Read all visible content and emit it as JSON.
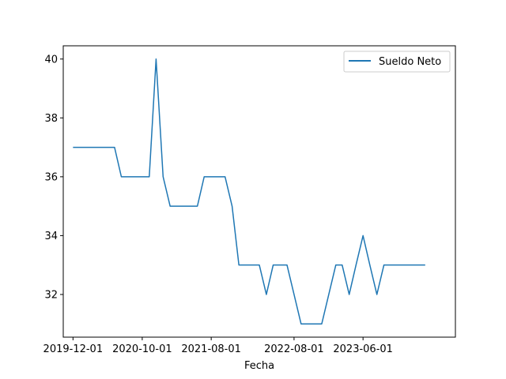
{
  "chart_data": {
    "type": "line",
    "xlabel": "Fecha",
    "ylabel": "",
    "title": "",
    "xlim": [
      "2019-10-19",
      "2024-07-12"
    ],
    "ylim": [
      30.55,
      40.45
    ],
    "x_ticks": [
      "2019-12-01",
      "2020-10-01",
      "2021-08-01",
      "2022-08-01",
      "2023-06-01"
    ],
    "y_ticks": [
      32,
      34,
      36,
      38,
      40
    ],
    "y_tick_labels": [
      "32",
      "34",
      "36",
      "38",
      "40"
    ],
    "legend": {
      "position": "upper-right",
      "entries": [
        "Sueldo Neto"
      ]
    },
    "grid": false,
    "series": [
      {
        "name": "Sueldo Neto",
        "color": "#1f77b4",
        "x": [
          "2019-12-01",
          "2020-01-01",
          "2020-02-01",
          "2020-03-01",
          "2020-04-01",
          "2020-05-01",
          "2020-06-01",
          "2020-07-01",
          "2020-08-01",
          "2020-09-01",
          "2020-10-01",
          "2020-11-01",
          "2020-12-01",
          "2021-01-01",
          "2021-02-01",
          "2021-03-01",
          "2021-04-01",
          "2021-05-01",
          "2021-06-01",
          "2021-07-01",
          "2021-08-01",
          "2021-09-01",
          "2021-10-01",
          "2021-11-01",
          "2021-12-01",
          "2022-01-01",
          "2022-02-01",
          "2022-03-01",
          "2022-04-01",
          "2022-05-01",
          "2022-06-01",
          "2022-07-01",
          "2022-08-01",
          "2022-09-01",
          "2022-10-01",
          "2022-11-01",
          "2022-12-01",
          "2023-01-01",
          "2023-02-01",
          "2023-03-01",
          "2023-04-01",
          "2023-05-01",
          "2023-06-01",
          "2023-07-01",
          "2023-08-01",
          "2023-09-01",
          "2023-10-01",
          "2023-11-01",
          "2023-12-01",
          "2024-01-01",
          "2024-02-01",
          "2024-03-01"
        ],
        "y": [
          37,
          37,
          37,
          37,
          37,
          37,
          37,
          36,
          36,
          36,
          36,
          36,
          40,
          36,
          35,
          35,
          35,
          35,
          35,
          36,
          36,
          36,
          36,
          35,
          33,
          33,
          33,
          33,
          32,
          33,
          33,
          33,
          32,
          31,
          31,
          31,
          31,
          32,
          33,
          33,
          32,
          33,
          34,
          33,
          32,
          33,
          33,
          33,
          33,
          33,
          33,
          33
        ]
      }
    ]
  }
}
